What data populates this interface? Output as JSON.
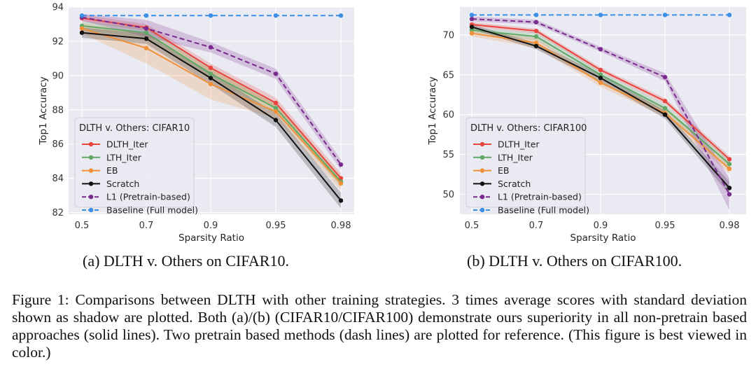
{
  "chart_data": [
    {
      "type": "line",
      "title": "",
      "xlabel": "Sparsity Ratio",
      "ylabel": "Top1 Accuracy",
      "categories": [
        "0.5",
        "0.7",
        "0.9",
        "0.95",
        "0.98"
      ],
      "yticks": [
        "82",
        "84",
        "86",
        "88",
        "90",
        "92",
        "94"
      ],
      "ylim": [
        81.9,
        94.0
      ],
      "grid": true,
      "legend_title": "DLTH v. Others: CIFAR10",
      "legend_placement": "lower-left",
      "series": [
        {
          "name": "DLTH_Iter",
          "color": "#e8453c",
          "dash": false,
          "values": [
            93.35,
            92.8,
            90.45,
            88.4,
            84.0
          ],
          "band": [
            0.2,
            0.2,
            0.25,
            0.3,
            0.3
          ]
        },
        {
          "name": "LTH_Iter",
          "color": "#5fa866",
          "dash": false,
          "values": [
            92.9,
            92.5,
            90.1,
            88.1,
            83.8
          ],
          "band": [
            0.25,
            0.3,
            0.3,
            0.3,
            0.3
          ]
        },
        {
          "name": "EB",
          "color": "#f0913a",
          "dash": false,
          "values": [
            92.75,
            91.6,
            89.5,
            87.9,
            83.7
          ],
          "band": [
            0.3,
            0.9,
            0.9,
            0.4,
            0.4
          ]
        },
        {
          "name": "Scratch",
          "color": "#111111",
          "dash": false,
          "values": [
            92.5,
            92.15,
            89.85,
            87.4,
            82.7
          ],
          "band": [
            0.3,
            0.3,
            0.35,
            0.4,
            0.45
          ]
        },
        {
          "name": "L1 (Pretrain-based)",
          "color": "#7a2a8f",
          "dash": true,
          "values": [
            93.4,
            92.75,
            91.65,
            90.1,
            84.8
          ],
          "band": [
            0.2,
            0.5,
            0.3,
            0.3,
            0.3
          ]
        },
        {
          "name": "Baseline (Full model)",
          "color": "#3b8fe6",
          "dash": true,
          "values": [
            93.5,
            93.5,
            93.5,
            93.5,
            93.5
          ],
          "band": [
            0,
            0,
            0,
            0,
            0
          ]
        }
      ]
    },
    {
      "type": "line",
      "title": "",
      "xlabel": "Sparsity Ratio",
      "ylabel": "Top1 Accuracy",
      "categories": [
        "0.5",
        "0.7",
        "0.9",
        "0.95",
        "0.98"
      ],
      "yticks": [
        "50",
        "55",
        "60",
        "65",
        "70"
      ],
      "ylim": [
        47.5,
        73.5
      ],
      "grid": true,
      "legend_title": "DLTH v. Others: CIFAR100",
      "legend_placement": "lower-left",
      "series": [
        {
          "name": "DLTH_Iter",
          "color": "#e8453c",
          "dash": false,
          "values": [
            71.3,
            70.5,
            65.6,
            61.7,
            54.4
          ],
          "band": [
            0.3,
            0.3,
            0.3,
            0.35,
            0.4
          ]
        },
        {
          "name": "LTH_Iter",
          "color": "#5fa866",
          "dash": false,
          "values": [
            70.6,
            69.8,
            65.0,
            60.8,
            53.8
          ],
          "band": [
            0.3,
            0.5,
            0.4,
            0.5,
            0.5
          ]
        },
        {
          "name": "EB",
          "color": "#f0913a",
          "dash": false,
          "values": [
            70.2,
            69.0,
            64.0,
            60.2,
            53.2
          ],
          "band": [
            0.4,
            0.6,
            0.5,
            0.5,
            0.6
          ]
        },
        {
          "name": "Scratch",
          "color": "#111111",
          "dash": false,
          "values": [
            71.0,
            68.6,
            64.6,
            60.0,
            50.8
          ],
          "band": [
            0.3,
            0.4,
            0.5,
            0.5,
            0.8
          ]
        },
        {
          "name": "L1 (Pretrain-based)",
          "color": "#7a2a8f",
          "dash": true,
          "values": [
            72.0,
            71.6,
            68.2,
            64.7,
            50.0
          ],
          "band": [
            0.3,
            0.3,
            0.3,
            0.5,
            2.0
          ]
        },
        {
          "name": "Baseline (Full model)",
          "color": "#3b8fe6",
          "dash": true,
          "values": [
            72.5,
            72.5,
            72.5,
            72.5,
            72.5
          ],
          "band": [
            0,
            0,
            0,
            0,
            0
          ]
        }
      ]
    }
  ],
  "subcaptions": {
    "a": "(a) DLTH v. Others on CIFAR10.",
    "b": "(b) DLTH v. Others on CIFAR100."
  },
  "caption": "Figure 1: Comparisons between DLTH with other training strategies. 3 times average scores with standard deviation shown as shadow are plotted. Both (a)/(b) (CIFAR10/CIFAR100) demonstrate ours superiority in all non-pretrain based approaches (solid lines). Two pretrain based methods (dash lines) are plotted for reference. (This figure is best viewed in color.)"
}
